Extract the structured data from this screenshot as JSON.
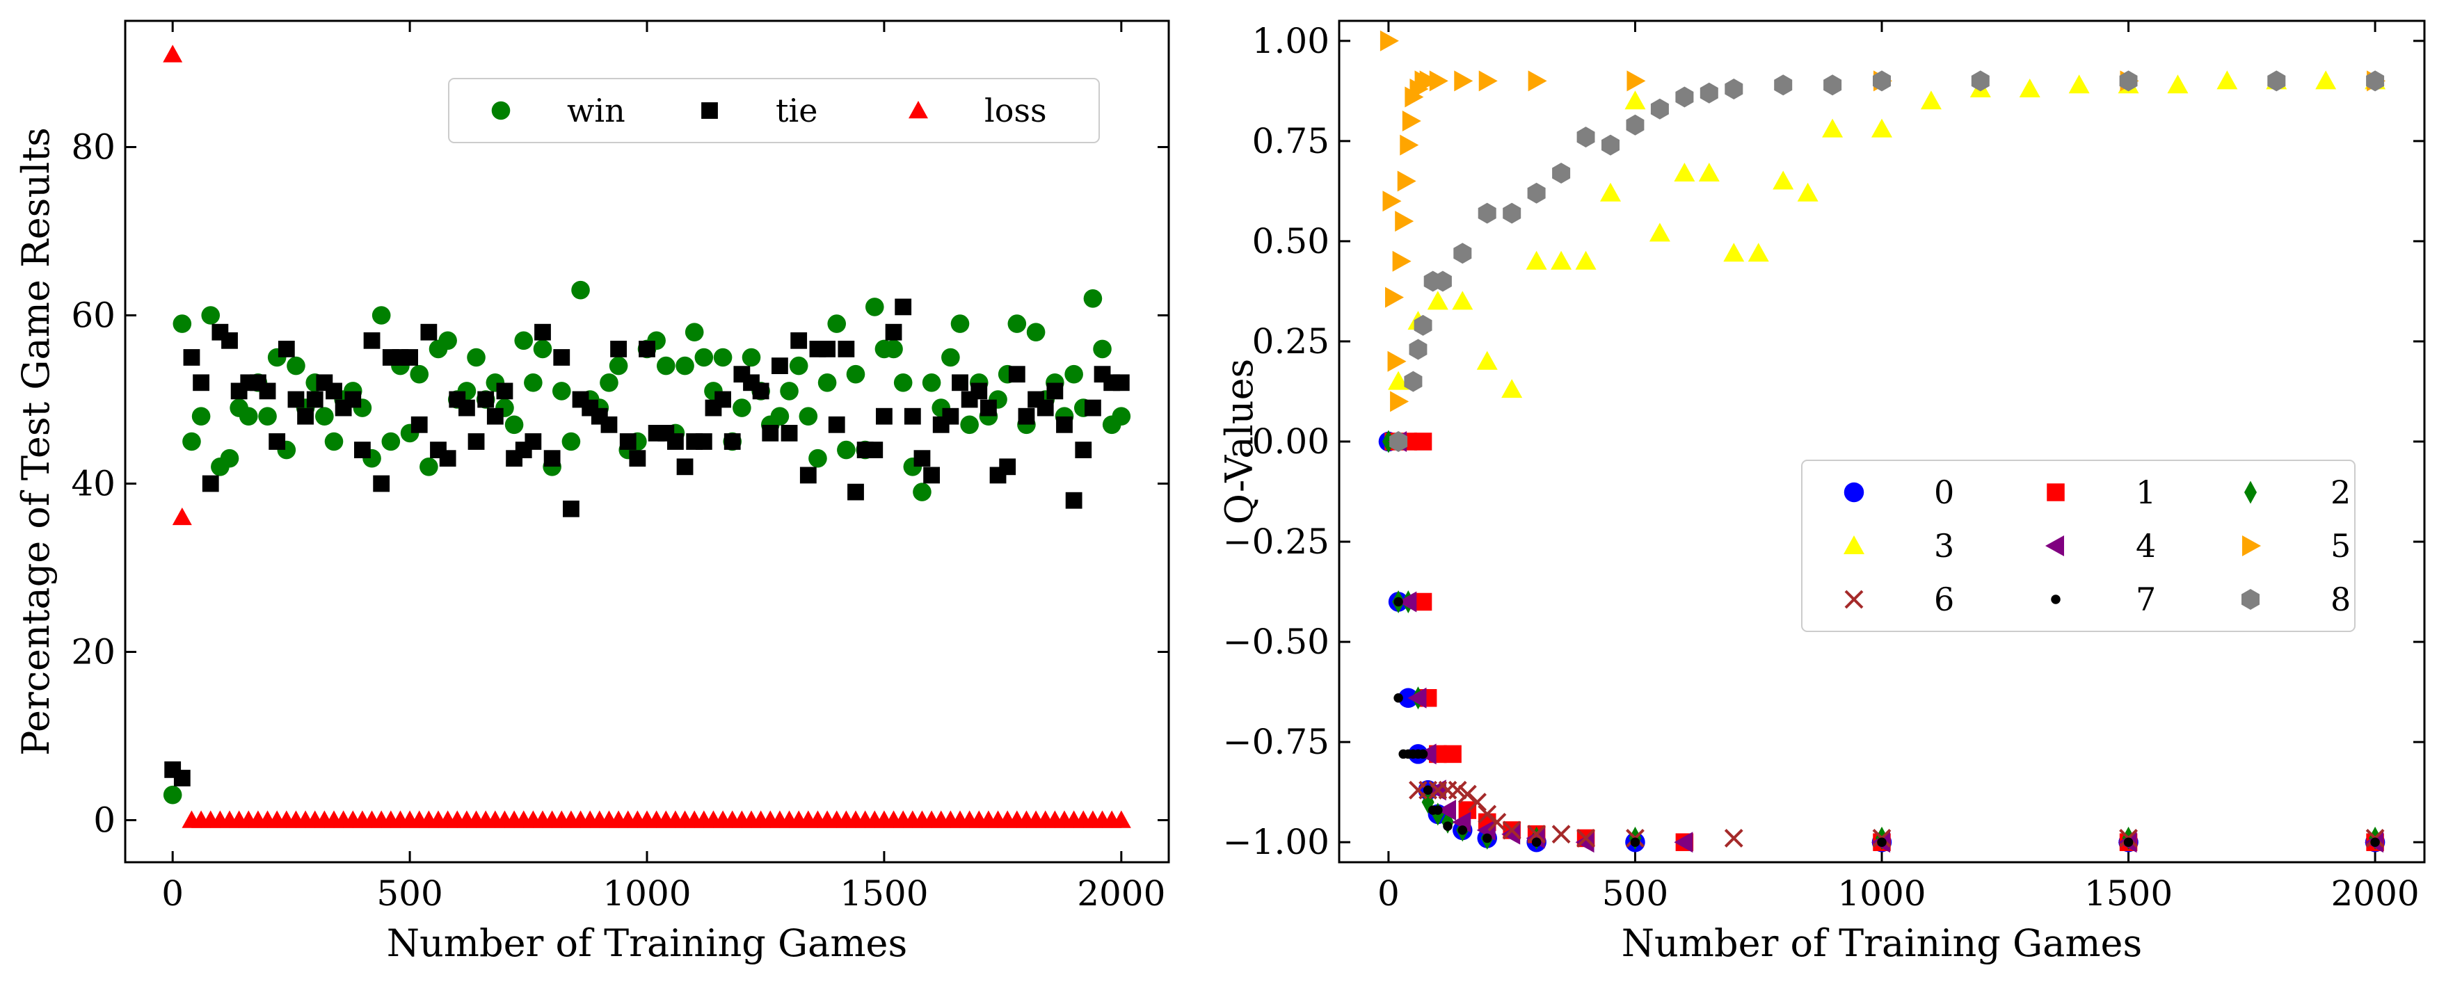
{
  "chart_data": [
    {
      "type": "scatter",
      "xlabel": "Number of Training Games",
      "ylabel": "Percentage of Test Game Results",
      "xlim": [
        -100,
        2100
      ],
      "ylim": [
        -5,
        95
      ],
      "xticks": [
        0,
        500,
        1000,
        1500,
        2000
      ],
      "yticks": [
        0,
        20,
        40,
        60,
        80
      ],
      "legend": "top-right",
      "series": [
        {
          "name": "win",
          "marker": "circle",
          "color": "#008000",
          "x": [
            0,
            20,
            40,
            60,
            80,
            100,
            120,
            140,
            160,
            180,
            200,
            220,
            240,
            260,
            280,
            300,
            320,
            340,
            360,
            380,
            400,
            420,
            440,
            460,
            480,
            500,
            520,
            540,
            560,
            580,
            600,
            620,
            640,
            660,
            680,
            700,
            720,
            740,
            760,
            780,
            800,
            820,
            840,
            860,
            880,
            900,
            920,
            940,
            960,
            980,
            1000,
            1020,
            1040,
            1060,
            1080,
            1100,
            1120,
            1140,
            1160,
            1180,
            1200,
            1220,
            1240,
            1260,
            1280,
            1300,
            1320,
            1340,
            1360,
            1380,
            1400,
            1420,
            1440,
            1460,
            1480,
            1500,
            1520,
            1540,
            1560,
            1580,
            1600,
            1620,
            1640,
            1660,
            1680,
            1700,
            1720,
            1740,
            1760,
            1780,
            1800,
            1820,
            1840,
            1860,
            1880,
            1900,
            1920,
            1940,
            1960,
            1980,
            2000
          ],
          "y": [
            3,
            59,
            45,
            48,
            60,
            42,
            43,
            49,
            48,
            52,
            48,
            55,
            44,
            54,
            49,
            52,
            48,
            45,
            50,
            51,
            49,
            43,
            60,
            45,
            54,
            46,
            53,
            42,
            56,
            57,
            50,
            51,
            55,
            50,
            52,
            49,
            47,
            57,
            52,
            56,
            42,
            51,
            45,
            63,
            50,
            49,
            52,
            54,
            44,
            45,
            56,
            57,
            54,
            46,
            54,
            58,
            55,
            51,
            55,
            45,
            49,
            55,
            51,
            47,
            48,
            51,
            54,
            48,
            43,
            52,
            59,
            44,
            53,
            44,
            61,
            56,
            56,
            52,
            42,
            39,
            52,
            49,
            55,
            59,
            47,
            52,
            48,
            50,
            53,
            59,
            47,
            58,
            50,
            52,
            48,
            53,
            49,
            62,
            56,
            47,
            48
          ]
        },
        {
          "name": "tie",
          "marker": "square",
          "color": "#000000",
          "x": [
            0,
            20,
            40,
            60,
            80,
            100,
            120,
            140,
            160,
            180,
            200,
            220,
            240,
            260,
            280,
            300,
            320,
            340,
            360,
            380,
            400,
            420,
            440,
            460,
            480,
            500,
            520,
            540,
            560,
            580,
            600,
            620,
            640,
            660,
            680,
            700,
            720,
            740,
            760,
            780,
            800,
            820,
            840,
            860,
            880,
            900,
            920,
            940,
            960,
            980,
            1000,
            1020,
            1040,
            1060,
            1080,
            1100,
            1120,
            1140,
            1160,
            1180,
            1200,
            1220,
            1240,
            1260,
            1280,
            1300,
            1320,
            1340,
            1360,
            1380,
            1400,
            1420,
            1440,
            1460,
            1480,
            1500,
            1520,
            1540,
            1560,
            1580,
            1600,
            1620,
            1640,
            1660,
            1680,
            1700,
            1720,
            1740,
            1760,
            1780,
            1800,
            1820,
            1840,
            1860,
            1880,
            1900,
            1920,
            1940,
            1960,
            1980,
            2000
          ],
          "y": [
            6,
            5,
            55,
            52,
            40,
            58,
            57,
            51,
            52,
            52,
            51,
            45,
            56,
            50,
            48,
            50,
            52,
            51,
            49,
            50,
            44,
            57,
            40,
            55,
            55,
            55,
            47,
            58,
            44,
            43,
            50,
            49,
            45,
            50,
            48,
            51,
            43,
            44,
            45,
            58,
            43,
            55,
            37,
            50,
            49,
            48,
            47,
            56,
            45,
            43,
            56,
            46,
            46,
            45,
            42,
            45,
            45,
            49,
            50,
            45,
            53,
            52,
            51,
            46,
            54,
            46,
            57,
            41,
            56,
            56,
            47,
            56,
            39,
            44,
            44,
            48,
            58,
            61,
            48,
            43,
            41,
            47,
            48,
            52,
            50,
            51,
            49,
            41,
            42,
            53,
            48,
            50,
            49,
            51,
            47,
            38,
            44,
            49,
            53,
            52,
            52
          ]
        },
        {
          "name": "loss",
          "marker": "triangle-up",
          "color": "#ff0000",
          "x": [
            0,
            20,
            40,
            60,
            80,
            100,
            120,
            140,
            160,
            180,
            200,
            220,
            240,
            260,
            280,
            300,
            320,
            340,
            360,
            380,
            400,
            420,
            440,
            460,
            480,
            500,
            520,
            540,
            560,
            580,
            600,
            620,
            640,
            660,
            680,
            700,
            720,
            740,
            760,
            780,
            800,
            820,
            840,
            860,
            880,
            900,
            920,
            940,
            960,
            980,
            1000,
            1020,
            1040,
            1060,
            1080,
            1100,
            1120,
            1140,
            1160,
            1180,
            1200,
            1220,
            1240,
            1260,
            1280,
            1300,
            1320,
            1340,
            1360,
            1380,
            1400,
            1420,
            1440,
            1460,
            1480,
            1500,
            1520,
            1540,
            1560,
            1580,
            1600,
            1620,
            1640,
            1660,
            1680,
            1700,
            1720,
            1740,
            1760,
            1780,
            1800,
            1820,
            1840,
            1860,
            1880,
            1900,
            1920,
            1940,
            1960,
            1980,
            2000
          ],
          "y": [
            91,
            36,
            0,
            0,
            0,
            0,
            0,
            0,
            0,
            0,
            0,
            0,
            0,
            0,
            0,
            0,
            0,
            0,
            0,
            0,
            0,
            0,
            0,
            0,
            0,
            0,
            0,
            0,
            0,
            0,
            0,
            0,
            0,
            0,
            0,
            0,
            0,
            0,
            0,
            0,
            0,
            0,
            0,
            0,
            0,
            0,
            0,
            0,
            0,
            0,
            0,
            0,
            0,
            0,
            0,
            0,
            0,
            0,
            0,
            0,
            0,
            0,
            0,
            0,
            0,
            0,
            0,
            0,
            0,
            0,
            0,
            0,
            0,
            0,
            0,
            0,
            0,
            0,
            0,
            0,
            0,
            0,
            0,
            0,
            0,
            0,
            0,
            0,
            0,
            0,
            0,
            0,
            0,
            0,
            0,
            0,
            0,
            0,
            0,
            0,
            0
          ]
        }
      ]
    },
    {
      "type": "scatter",
      "xlabel": "Number of Training Games",
      "ylabel": "Q-Values",
      "xlim": [
        -100,
        2100
      ],
      "ylim": [
        -1.05,
        1.05
      ],
      "xticks": [
        0,
        500,
        1000,
        1500,
        2000
      ],
      "yticks": [
        "1.00",
        "0.75",
        "0.50",
        "0.25",
        "0.00",
        "−0.25",
        "−0.50",
        "−0.75",
        "−1.00"
      ],
      "legend": "center-right",
      "series": [
        {
          "name": "0",
          "marker": "circle",
          "color": "#0000ff",
          "x": [
            0,
            20,
            40,
            60,
            80,
            100,
            150,
            200,
            300,
            500,
            1000,
            1500,
            2000
          ],
          "y": [
            0,
            -0.4,
            -0.64,
            -0.78,
            -0.87,
            -0.93,
            -0.97,
            -0.99,
            -1.0,
            -1.0,
            -1.0,
            -1.0,
            -1.0
          ]
        },
        {
          "name": "1",
          "marker": "square",
          "color": "#ff0000",
          "x": [
            10,
            40,
            70,
            70,
            80,
            100,
            130,
            160,
            200,
            250,
            300,
            400,
            600,
            1000,
            1500,
            2000
          ],
          "y": [
            0,
            0,
            0,
            -0.4,
            -0.64,
            -0.78,
            -0.78,
            -0.92,
            -0.95,
            -0.97,
            -0.98,
            -0.99,
            -1.0,
            -1.0,
            -1.0,
            -1.0
          ]
        },
        {
          "name": "2",
          "marker": "diamond",
          "color": "#008000",
          "x": [
            0,
            20,
            40,
            60,
            80,
            100,
            120,
            150,
            200,
            300,
            500,
            1000,
            1500,
            2000
          ],
          "y": [
            0,
            -0.4,
            -0.4,
            -0.64,
            -0.9,
            -0.93,
            -0.95,
            -0.97,
            -0.99,
            -0.99,
            -0.99,
            -0.99,
            -0.99,
            -0.99
          ]
        },
        {
          "name": "3",
          "marker": "triangle-up",
          "color": "#ffff00",
          "x": [
            20,
            60,
            100,
            150,
            200,
            250,
            300,
            350,
            400,
            450,
            500,
            550,
            600,
            650,
            700,
            750,
            800,
            850,
            900,
            1000,
            1100,
            1200,
            1300,
            1400,
            1500,
            1600,
            1700,
            1800,
            1900,
            2000
          ],
          "y": [
            0.15,
            0.3,
            0.35,
            0.35,
            0.2,
            0.13,
            0.45,
            0.45,
            0.45,
            0.62,
            0.85,
            0.52,
            0.67,
            0.67,
            0.47,
            0.47,
            0.65,
            0.62,
            0.78,
            0.78,
            0.85,
            0.88,
            0.88,
            0.89,
            0.89,
            0.89,
            0.9,
            0.9,
            0.9,
            0.9
          ]
        },
        {
          "name": "4",
          "marker": "triangle-left",
          "color": "#800080",
          "x": [
            20,
            40,
            60,
            80,
            100,
            120,
            150,
            200,
            250,
            300,
            400,
            600,
            1000,
            1500,
            2000
          ],
          "y": [
            0,
            -0.4,
            -0.64,
            -0.78,
            -0.87,
            -0.92,
            -0.95,
            -0.97,
            -0.98,
            -0.99,
            -1.0,
            -1.0,
            -1.0,
            -1.0,
            -1.0
          ]
        },
        {
          "name": "5",
          "marker": "triangle-right",
          "color": "#ffa500",
          "x": [
            0,
            5,
            10,
            15,
            20,
            25,
            30,
            35,
            40,
            45,
            50,
            60,
            70,
            80,
            100,
            150,
            200,
            300,
            500,
            1000,
            1500,
            2000
          ],
          "y": [
            1.0,
            0.6,
            0.36,
            0.2,
            0.1,
            0.45,
            0.55,
            0.65,
            0.74,
            0.8,
            0.86,
            0.88,
            0.9,
            0.9,
            0.9,
            0.9,
            0.9,
            0.9,
            0.9,
            0.9,
            0.9,
            0.9
          ]
        },
        {
          "name": "6",
          "marker": "x",
          "color": "#a52a2a",
          "x": [
            60,
            80,
            100,
            120,
            140,
            160,
            180,
            200,
            220,
            250,
            300,
            350,
            400,
            500,
            700,
            1000,
            1500,
            2000
          ],
          "y": [
            -0.87,
            -0.87,
            -0.87,
            -0.87,
            -0.87,
            -0.88,
            -0.9,
            -0.93,
            -0.95,
            -0.97,
            -0.98,
            -0.98,
            -0.99,
            -0.99,
            -0.99,
            -0.99,
            -0.99,
            -0.99
          ]
        },
        {
          "name": "7",
          "marker": "point",
          "color": "#000000",
          "x": [
            20,
            20,
            30,
            40,
            50,
            60,
            70,
            80,
            90,
            100,
            120,
            150,
            200,
            300,
            500,
            1000,
            1500,
            2000
          ],
          "y": [
            -0.4,
            -0.64,
            -0.78,
            -0.78,
            -0.78,
            -0.78,
            -0.78,
            -0.87,
            -0.92,
            -0.92,
            -0.96,
            -0.97,
            -0.99,
            -1.0,
            -1.0,
            -1.0,
            -1.0,
            -1.0
          ]
        },
        {
          "name": "8",
          "marker": "hexagon",
          "color": "#808080",
          "x": [
            20,
            50,
            60,
            70,
            90,
            110,
            150,
            200,
            250,
            300,
            350,
            400,
            450,
            500,
            550,
            600,
            650,
            700,
            800,
            900,
            1000,
            1200,
            1500,
            1800,
            2000
          ],
          "y": [
            0,
            0.15,
            0.23,
            0.29,
            0.4,
            0.4,
            0.47,
            0.57,
            0.57,
            0.62,
            0.67,
            0.76,
            0.74,
            0.79,
            0.83,
            0.86,
            0.87,
            0.88,
            0.89,
            0.89,
            0.9,
            0.9,
            0.9,
            0.9,
            0.9
          ]
        }
      ]
    }
  ]
}
